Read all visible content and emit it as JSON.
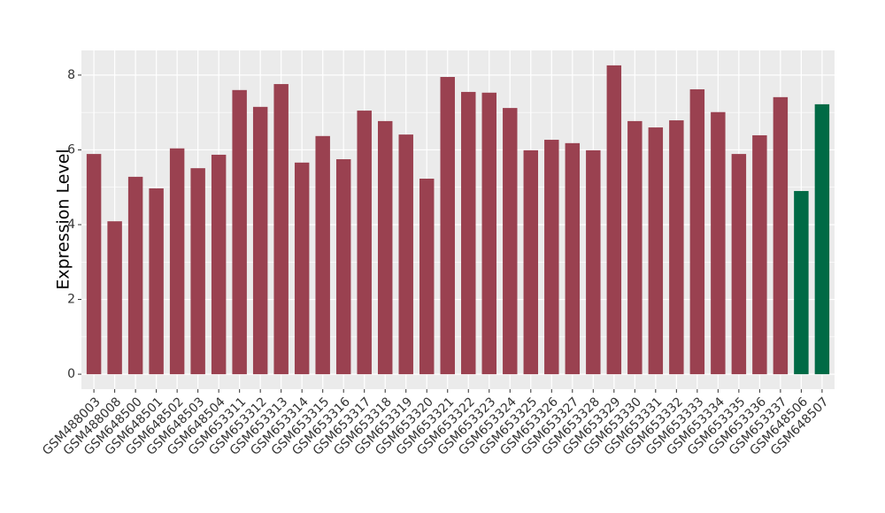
{
  "chart_data": {
    "type": "bar",
    "y_label": "Expression Level",
    "categories": [
      "GSM488003",
      "GSM488008",
      "GSM648500",
      "GSM648501",
      "GSM648502",
      "GSM648503",
      "GSM648504",
      "GSM653311",
      "GSM653312",
      "GSM653313",
      "GSM653314",
      "GSM653315",
      "GSM653316",
      "GSM653317",
      "GSM653318",
      "GSM653319",
      "GSM653320",
      "GSM653321",
      "GSM653322",
      "GSM653323",
      "GSM653324",
      "GSM653325",
      "GSM653326",
      "GSM653327",
      "GSM653328",
      "GSM653329",
      "GSM653330",
      "GSM653331",
      "GSM653332",
      "GSM653333",
      "GSM653334",
      "GSM653335",
      "GSM653336",
      "GSM653337",
      "GSM648506",
      "GSM648507"
    ],
    "values": [
      5.89,
      4.09,
      5.28,
      4.97,
      6.04,
      5.51,
      5.87,
      7.6,
      7.15,
      7.76,
      5.66,
      6.37,
      5.75,
      7.05,
      6.77,
      6.41,
      5.23,
      7.95,
      7.55,
      7.53,
      7.12,
      5.99,
      6.27,
      6.18,
      5.99,
      8.26,
      6.77,
      6.6,
      6.79,
      7.62,
      7.01,
      5.89,
      6.39,
      7.41,
      4.9,
      7.22
    ],
    "colors": [
      "#9a4150",
      "#9a4150",
      "#9a4150",
      "#9a4150",
      "#9a4150",
      "#9a4150",
      "#9a4150",
      "#9a4150",
      "#9a4150",
      "#9a4150",
      "#9a4150",
      "#9a4150",
      "#9a4150",
      "#9a4150",
      "#9a4150",
      "#9a4150",
      "#9a4150",
      "#9a4150",
      "#9a4150",
      "#9a4150",
      "#9a4150",
      "#9a4150",
      "#9a4150",
      "#9a4150",
      "#9a4150",
      "#9a4150",
      "#9a4150",
      "#9a4150",
      "#9a4150",
      "#9a4150",
      "#9a4150",
      "#9a4150",
      "#9a4150",
      "#9a4150",
      "#006a45",
      "#006a45"
    ],
    "ylim": [
      -0.4,
      8.66
    ],
    "yticks": [
      0,
      2,
      4,
      6,
      8
    ],
    "grid": true
  }
}
